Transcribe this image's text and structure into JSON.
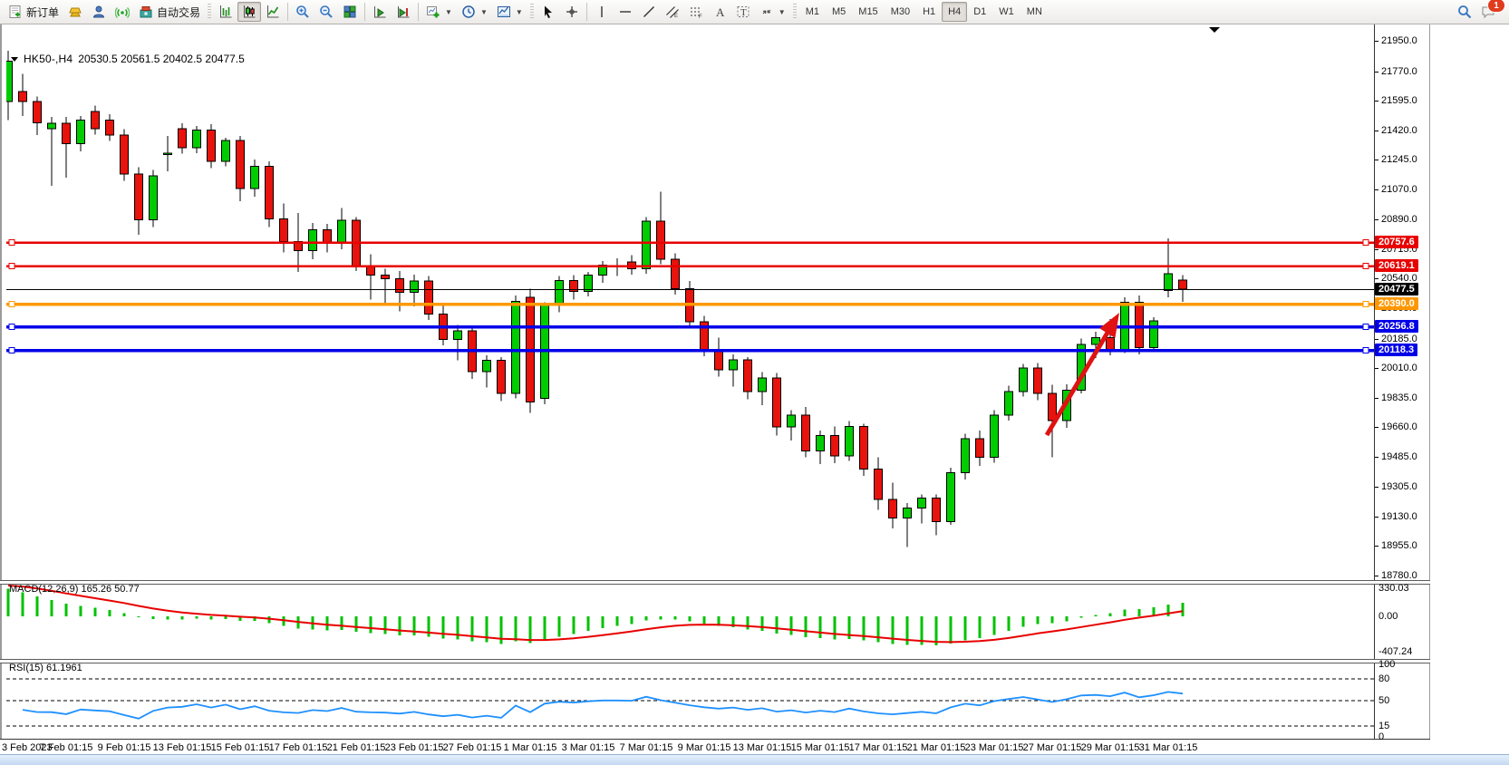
{
  "toolbar": {
    "new_order_label": "新订单",
    "auto_trading_label": "自动交易",
    "timeframes": [
      "M1",
      "M5",
      "M15",
      "M30",
      "H1",
      "H4",
      "D1",
      "W1",
      "MN"
    ],
    "active_timeframe": "H4",
    "notification_badge": "1",
    "icon_names": [
      "new-order-icon",
      "gold-bars-icon",
      "profile-icon",
      "signal-icon",
      "auto-trading-icon",
      "bar-chart-icon",
      "candlestick-chart-icon",
      "line-chart-icon",
      "zoom-in-icon",
      "zoom-out-icon",
      "tile-windows-icon",
      "auto-scroll-icon",
      "chart-shift-icon",
      "add-indicator-icon",
      "periodicity-icon",
      "template-icon",
      "cursor-icon",
      "crosshair-icon",
      "vertical-line-icon",
      "horizontal-line-icon",
      "trendline-icon",
      "channel-icon",
      "fibonacci-icon",
      "text-icon",
      "text-label-icon",
      "arrows-icon",
      "search-icon",
      "chat-icon"
    ]
  },
  "chart": {
    "symbol_period": "HK50-,H4",
    "quote_ohlc": "20530.5 20561.5 20402.5 20477.5"
  },
  "indicators": {
    "macd_label": "MACD(12,26,9) 165.26 50.77",
    "rsi_label": "RSI(15) 61.1961"
  },
  "chart_data": {
    "type": "candlestick",
    "symbol": "HK50-",
    "timeframe": "H4",
    "current_ohlc": {
      "open": 20530.5,
      "high": 20561.5,
      "low": 20402.5,
      "close": 20477.5
    },
    "up_color": "#00cc00",
    "down_color": "#e8130c",
    "wick_color": "#000000",
    "price_axis_ticks": [
      "21950.0",
      "21770.0",
      "21595.0",
      "21420.0",
      "21245.0",
      "21070.0",
      "20890.0",
      "20715.0",
      "20540.0",
      "20365.0",
      "20185.0",
      "20010.0",
      "19835.0",
      "19660.0",
      "19485.0",
      "19305.0",
      "19130.0",
      "18955.0",
      "18780.0"
    ],
    "price_axis_range": [
      18780.0,
      21950.0
    ],
    "hlines": [
      {
        "price": 20757.6,
        "label": "20757.6",
        "color": "#e80000",
        "width": 2.5,
        "handles": true
      },
      {
        "price": 20619.1,
        "label": "20619.1",
        "color": "#e80000",
        "width": 2.5,
        "handles": true
      },
      {
        "price": 20477.5,
        "label": "20477.5",
        "color": "#000000",
        "width": 1,
        "handles": false
      },
      {
        "price": 20390.0,
        "label": "20390.0",
        "color": "#ff9800",
        "width": 3.5,
        "handles": true
      },
      {
        "price": 20256.8,
        "label": "20256.8",
        "color": "#0000e8",
        "width": 3.5,
        "handles": true
      },
      {
        "price": 20118.3,
        "label": "20118.3",
        "color": "#0000e8",
        "width": 3.5,
        "handles": true
      }
    ],
    "ohlc": [
      [
        21590,
        21890,
        21480,
        21830
      ],
      [
        21650,
        21755,
        21505,
        21590
      ],
      [
        21590,
        21620,
        21390,
        21465
      ],
      [
        21430,
        21500,
        21090,
        21460
      ],
      [
        21460,
        21500,
        21140,
        21340
      ],
      [
        21340,
        21505,
        21295,
        21480
      ],
      [
        21530,
        21565,
        21395,
        21430
      ],
      [
        21480,
        21515,
        21355,
        21390
      ],
      [
        21390,
        21425,
        21120,
        21160
      ],
      [
        21160,
        21200,
        20800,
        20890
      ],
      [
        20890,
        21185,
        20845,
        21150
      ],
      [
        21280,
        21385,
        21175,
        21285
      ],
      [
        21430,
        21460,
        21280,
        21315
      ],
      [
        21315,
        21445,
        21285,
        21420
      ],
      [
        21420,
        21455,
        21195,
        21235
      ],
      [
        21235,
        21375,
        21205,
        21360
      ],
      [
        21360,
        21385,
        21000,
        21075
      ],
      [
        21075,
        21245,
        21025,
        21205
      ],
      [
        21205,
        21235,
        20845,
        20895
      ],
      [
        20895,
        20985,
        20695,
        20760
      ],
      [
        20760,
        20930,
        20580,
        20705
      ],
      [
        20705,
        20870,
        20655,
        20830
      ],
      [
        20830,
        20865,
        20695,
        20755
      ],
      [
        20755,
        20960,
        20715,
        20885
      ],
      [
        20885,
        20905,
        20585,
        20615
      ],
      [
        20615,
        20685,
        20415,
        20560
      ],
      [
        20560,
        20600,
        20385,
        20540
      ],
      [
        20540,
        20585,
        20345,
        20460
      ],
      [
        20460,
        20565,
        20375,
        20525
      ],
      [
        20525,
        20555,
        20295,
        20330
      ],
      [
        20330,
        20380,
        20145,
        20180
      ],
      [
        20180,
        20265,
        20055,
        20230
      ],
      [
        20230,
        20260,
        19945,
        19990
      ],
      [
        19990,
        20085,
        19895,
        20055
      ],
      [
        20055,
        20075,
        19815,
        19860
      ],
      [
        19860,
        20440,
        19830,
        20405
      ],
      [
        20430,
        20480,
        19745,
        19810
      ],
      [
        19830,
        20400,
        19795,
        20380
      ],
      [
        20380,
        20555,
        20340,
        20530
      ],
      [
        20530,
        20560,
        20415,
        20465
      ],
      [
        20465,
        20580,
        20435,
        20560
      ],
      [
        20560,
        20645,
        20515,
        20620
      ],
      [
        20615,
        20660,
        20555,
        20618
      ],
      [
        20640,
        20680,
        20565,
        20600
      ],
      [
        20600,
        20905,
        20570,
        20880
      ],
      [
        20880,
        21055,
        20625,
        20655
      ],
      [
        20655,
        20690,
        20445,
        20480
      ],
      [
        20480,
        20525,
        20245,
        20285
      ],
      [
        20285,
        20320,
        20080,
        20120
      ],
      [
        20120,
        20190,
        19960,
        20000
      ],
      [
        20000,
        20090,
        19900,
        20060
      ],
      [
        20060,
        20075,
        19825,
        19870
      ],
      [
        19870,
        19985,
        19790,
        19950
      ],
      [
        19950,
        19980,
        19610,
        19660
      ],
      [
        19660,
        19760,
        19580,
        19730
      ],
      [
        19730,
        19780,
        19480,
        19520
      ],
      [
        19520,
        19640,
        19440,
        19610
      ],
      [
        19610,
        19665,
        19445,
        19490
      ],
      [
        19490,
        19695,
        19460,
        19665
      ],
      [
        19665,
        19680,
        19370,
        19410
      ],
      [
        19410,
        19480,
        19170,
        19230
      ],
      [
        19230,
        19330,
        19060,
        19120
      ],
      [
        19120,
        19210,
        18950,
        19180
      ],
      [
        19180,
        19260,
        19090,
        19240
      ],
      [
        19240,
        19260,
        19020,
        19100
      ],
      [
        19100,
        19420,
        19080,
        19390
      ],
      [
        19390,
        19620,
        19350,
        19590
      ],
      [
        19590,
        19640,
        19430,
        19480
      ],
      [
        19480,
        19760,
        19450,
        19730
      ],
      [
        19730,
        19905,
        19700,
        19870
      ],
      [
        19870,
        20035,
        19840,
        20010
      ],
      [
        20010,
        20040,
        19820,
        19860
      ],
      [
        19860,
        19910,
        19480,
        19700
      ],
      [
        19700,
        19915,
        19655,
        19880
      ],
      [
        19880,
        20185,
        19860,
        20150
      ],
      [
        20150,
        20225,
        20070,
        20190
      ],
      [
        20190,
        20300,
        20085,
        20120
      ],
      [
        20120,
        20430,
        20100,
        20400
      ],
      [
        20400,
        20440,
        20090,
        20130
      ],
      [
        20130,
        20310,
        20105,
        20290
      ],
      [
        20470,
        20780,
        20430,
        20570
      ],
      [
        20530.5,
        20561.5,
        20402.5,
        20477.5
      ]
    ],
    "x_labels": [
      {
        "i": 0,
        "label": "3 Feb 2023"
      },
      {
        "i": 4,
        "label": "7 Feb 01:15"
      },
      {
        "i": 8,
        "label": "9 Feb 01:15"
      },
      {
        "i": 12,
        "label": "13 Feb 01:15"
      },
      {
        "i": 16,
        "label": "15 Feb 01:15"
      },
      {
        "i": 20,
        "label": "17 Feb 01:15"
      },
      {
        "i": 24,
        "label": "21 Feb 01:15"
      },
      {
        "i": 28,
        "label": "23 Feb 01:15"
      },
      {
        "i": 32,
        "label": "27 Feb 01:15"
      },
      {
        "i": 36,
        "label": "1 Mar 01:15"
      },
      {
        "i": 40,
        "label": "3 Mar 01:15"
      },
      {
        "i": 44,
        "label": "7 Mar 01:15"
      },
      {
        "i": 48,
        "label": "9 Mar 01:15"
      },
      {
        "i": 52,
        "label": "13 Mar 01:15"
      },
      {
        "i": 56,
        "label": "15 Mar 01:15"
      },
      {
        "i": 60,
        "label": "17 Mar 01:15"
      },
      {
        "i": 64,
        "label": "21 Mar 01:15"
      },
      {
        "i": 68,
        "label": "23 Mar 01:15"
      },
      {
        "i": 72,
        "label": "27 Mar 01:15"
      },
      {
        "i": 76,
        "label": "29 Mar 01:15"
      },
      {
        "i": 80,
        "label": "31 Mar 01:15"
      }
    ],
    "macd": {
      "params": [
        12,
        26,
        9
      ],
      "value_main": 165.26,
      "value_signal": 50.77,
      "axis_labels": [
        "330.03",
        "0.00",
        "-407.24"
      ],
      "axis_max": 330.03,
      "axis_min": -407.24,
      "histogram_color": "#00c200",
      "signal_color": "#e80000"
    },
    "rsi": {
      "period": 15,
      "value": 61.1961,
      "axis_labels": [
        "100",
        "80",
        "50",
        "15",
        "0"
      ],
      "levels": [
        80,
        50,
        15
      ],
      "line_color": "#1e90ff"
    },
    "annotations": [
      {
        "type": "arrow",
        "color": "#e01212",
        "note": "red arrow pointing up-right toward the blue support lines near the latest candles"
      }
    ]
  }
}
